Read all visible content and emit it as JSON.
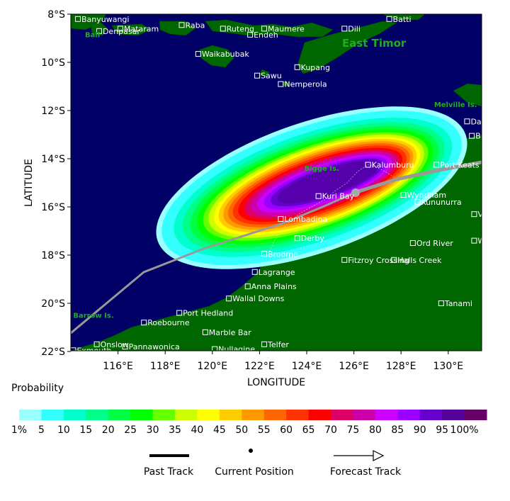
{
  "axes": {
    "xlabel": "LONGITUDE",
    "ylabel": "LATITUDE",
    "lat_ticks": [
      "8°S",
      "10°S",
      "12°S",
      "14°S",
      "16°S",
      "18°S",
      "20°S",
      "22°S"
    ],
    "lon_ticks": [
      "116°E",
      "118°E",
      "120°E",
      "122°E",
      "124°E",
      "126°E",
      "128°E",
      "130°E"
    ]
  },
  "colorbar": {
    "title": "Probability",
    "labels": [
      "1%",
      "5",
      "10",
      "15",
      "20",
      "25",
      "30",
      "35",
      "40",
      "45",
      "50",
      "55",
      "60",
      "65",
      "70",
      "75",
      "80",
      "85",
      "90",
      "95",
      "100%"
    ],
    "colors": [
      "#99ffff",
      "#33ffff",
      "#00ffcc",
      "#00ff88",
      "#00ff44",
      "#00ff00",
      "#66ff00",
      "#ccff00",
      "#ffff00",
      "#ffcc00",
      "#ff9900",
      "#ff6600",
      "#ff3300",
      "#ff0000",
      "#dd0066",
      "#cc00aa",
      "#cc00ff",
      "#9900ff",
      "#6600cc",
      "#550099",
      "#660066"
    ]
  },
  "legend": {
    "past_track": "Past Track",
    "current_position": "Current Position",
    "forecast_track": "Forecast Track"
  },
  "places": [
    {
      "name": "Banyuwangi",
      "lon": 114.3,
      "lat": 8.2
    },
    {
      "name": "Mataram",
      "lon": 116.1,
      "lat": 8.6
    },
    {
      "name": "Denpasar",
      "lon": 115.2,
      "lat": 8.7
    },
    {
      "name": "Raba",
      "lon": 118.7,
      "lat": 8.45
    },
    {
      "name": "Ruteng",
      "lon": 120.45,
      "lat": 8.6
    },
    {
      "name": "Maumere",
      "lon": 122.2,
      "lat": 8.6
    },
    {
      "name": "Endeh",
      "lon": 121.6,
      "lat": 8.85
    },
    {
      "name": "Batti",
      "lon": 127.5,
      "lat": 8.2
    },
    {
      "name": "Dili",
      "lon": 125.6,
      "lat": 8.6
    },
    {
      "name": "Waikabubak",
      "lon": 119.4,
      "lat": 9.65
    },
    {
      "name": "Kupang",
      "lon": 123.6,
      "lat": 10.2
    },
    {
      "name": "Sawu",
      "lon": 121.9,
      "lat": 10.55
    },
    {
      "name": "Nemperola",
      "lon": 122.9,
      "lat": 10.9
    },
    {
      "name": "Darwin",
      "lon": 130.8,
      "lat": 12.45
    },
    {
      "name": "Batchelor",
      "lon": 131.0,
      "lat": 13.05
    },
    {
      "name": "Kalumburu",
      "lon": 126.6,
      "lat": 14.25
    },
    {
      "name": "Port Keats",
      "lon": 129.5,
      "lat": 14.25
    },
    {
      "name": "Wyndham",
      "lon": 128.1,
      "lat": 15.5
    },
    {
      "name": "Kuri Bay",
      "lon": 124.5,
      "lat": 15.55
    },
    {
      "name": "Kununurra",
      "lon": 128.7,
      "lat": 15.8
    },
    {
      "name": "Victoria R. Downs",
      "lon": 131.1,
      "lat": 16.3
    },
    {
      "name": "Lombadina",
      "lon": 122.9,
      "lat": 16.5
    },
    {
      "name": "Derby",
      "lon": 123.6,
      "lat": 17.3
    },
    {
      "name": "Wave Hill",
      "lon": 131.1,
      "lat": 17.4
    },
    {
      "name": "Ord River",
      "lon": 128.5,
      "lat": 17.5
    },
    {
      "name": "Broome",
      "lon": 122.2,
      "lat": 17.95
    },
    {
      "name": "Halls Creek",
      "lon": 127.7,
      "lat": 18.2
    },
    {
      "name": "Fitzroy Crossing",
      "lon": 125.6,
      "lat": 18.2
    },
    {
      "name": "Lagrange",
      "lon": 121.8,
      "lat": 18.7
    },
    {
      "name": "Anna Plains",
      "lon": 121.5,
      "lat": 19.3
    },
    {
      "name": "Wallal Downs",
      "lon": 120.7,
      "lat": 19.8
    },
    {
      "name": "Tanami",
      "lon": 129.7,
      "lat": 20.0
    },
    {
      "name": "Port Hedland",
      "lon": 118.6,
      "lat": 20.4
    },
    {
      "name": "Roebourne",
      "lon": 117.1,
      "lat": 20.8
    },
    {
      "name": "Marble Bar",
      "lon": 119.7,
      "lat": 21.2
    },
    {
      "name": "Onslow",
      "lon": 115.1,
      "lat": 21.7
    },
    {
      "name": "Telfer",
      "lon": 122.2,
      "lat": 21.7
    },
    {
      "name": "Exmouth",
      "lon": 114.1,
      "lat": 21.95
    },
    {
      "name": "Pannawonica",
      "lon": 116.3,
      "lat": 21.8
    },
    {
      "name": "Nullagine",
      "lon": 120.1,
      "lat": 21.9
    }
  ],
  "regions": [
    {
      "name": "Bali",
      "lon": 114.6,
      "lat": 8.95,
      "big": false
    },
    {
      "name": "East Timor",
      "lon": 125.5,
      "lat": 9.35,
      "big": true
    },
    {
      "name": "Melville Is.",
      "lon": 129.4,
      "lat": 11.85,
      "big": false
    },
    {
      "name": "Bigge Is.",
      "lon": 123.9,
      "lat": 14.5,
      "big": false
    },
    {
      "name": "Barrow Is.",
      "lon": 114.1,
      "lat": 20.6,
      "big": false
    }
  ]
}
